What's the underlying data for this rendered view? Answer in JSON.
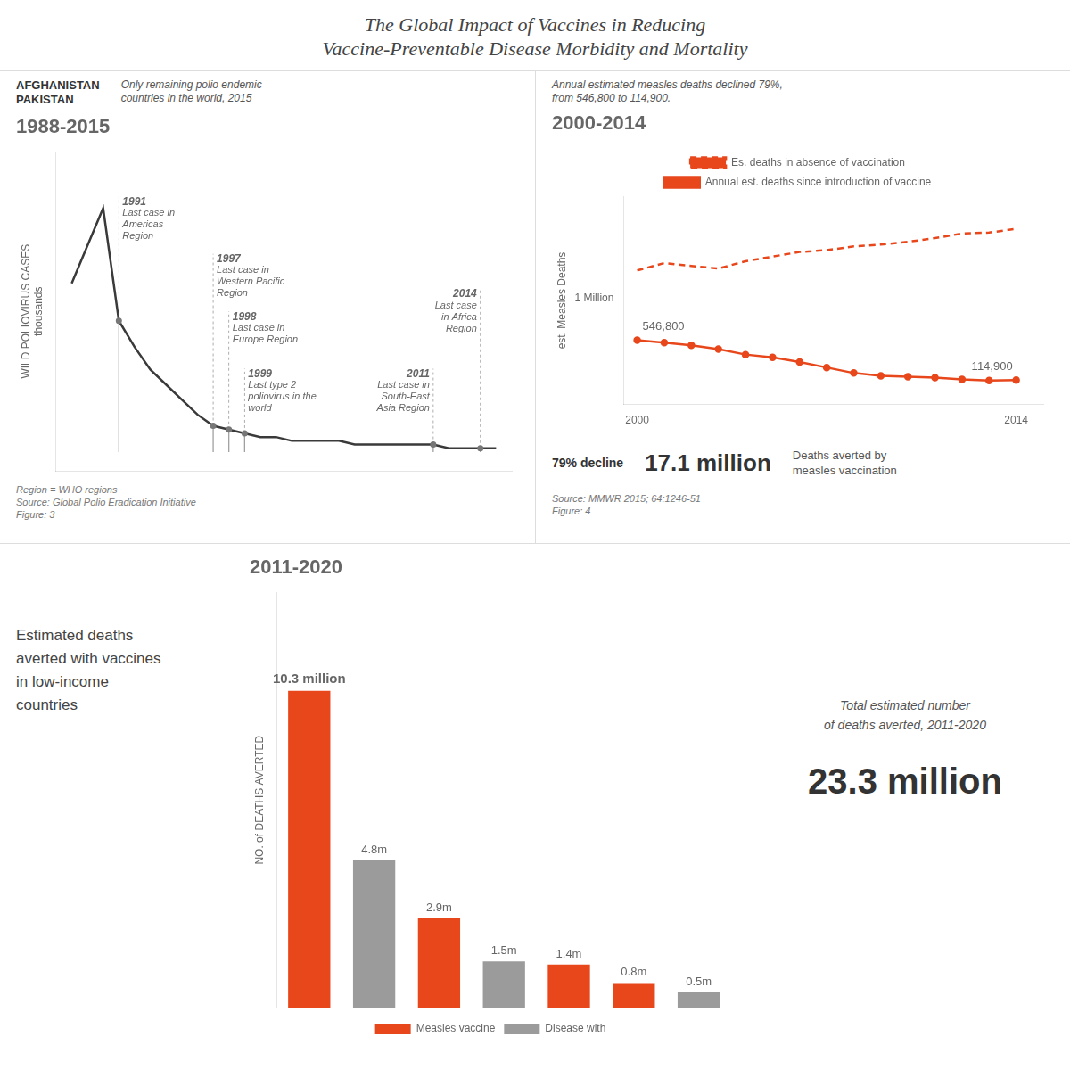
{
  "title": "The Global Impact of Vaccines in Reducing\nVaccine-Preventable Disease Morbidity and Mortality",
  "chart_data": [
    {
      "type": "line",
      "subtitle": "1988-2015",
      "x": [
        1988,
        1989,
        1990,
        1991,
        1992,
        1993,
        1994,
        1995,
        1996,
        1997,
        1998,
        1999,
        2000,
        2001,
        2002,
        2003,
        2004,
        2005,
        2006,
        2007,
        2008,
        2009,
        2010,
        2011,
        2012,
        2013,
        2014,
        2015
      ],
      "values": [
        0.45,
        0.55,
        0.65,
        0.35,
        0.28,
        0.22,
        0.18,
        0.14,
        0.1,
        0.07,
        0.06,
        0.05,
        0.04,
        0.04,
        0.03,
        0.03,
        0.03,
        0.03,
        0.02,
        0.02,
        0.02,
        0.02,
        0.02,
        0.02,
        0.01,
        0.01,
        0.01,
        0.01
      ],
      "color": "#3A3A3A",
      "ylabel": "WILD POLIOVIRUS CASES\nthousands",
      "xlim": [
        1987,
        2016
      ],
      "ylim": [
        -0.05,
        0.8
      ],
      "tick_labels": false,
      "grid": false,
      "events": [
        {
          "x": 1991,
          "y": 0.35,
          "label": "1991",
          "text": "Last case in\nAmericas\nRegion"
        },
        {
          "x": 1997,
          "y": 0.07,
          "label": "1997",
          "text": "Last case in\nWestern Pacific\nRegion"
        },
        {
          "x": 1998,
          "y": 0.06,
          "label": "1998",
          "text": "Last case in\nEurope Region"
        },
        {
          "x": 1999,
          "y": 0.05,
          "label": "1999",
          "text": "Last type 2\npoliovirus in the\nworld"
        },
        {
          "x": 2011,
          "y": 0.02,
          "label": "2011",
          "text": "Last case in\nSouth-East\nAsia Region"
        },
        {
          "x": 2014,
          "y": 0.01,
          "label": "2014",
          "text": "Last case\nin Africa\nRegion"
        }
      ],
      "annotations": [
        "AFGHANISTAN\nPAKISTAN",
        "Only remaining polio endemic\ncountries in the world, 2015",
        "Region = WHO regions\nSource: Global Polio Eradication Initiative\nFigure: 3"
      ]
    },
    {
      "type": "line",
      "subtitle": "2000-2014",
      "x": [
        2000,
        2001,
        2002,
        2003,
        2004,
        2005,
        2006,
        2007,
        2008,
        2009,
        2010,
        2011,
        2012,
        2013,
        2014
      ],
      "series": [
        {
          "name": "Es. deaths in absence of vaccination",
          "color": "#E8471C",
          "line_style": "dashed",
          "values": [
            1300000,
            1380000,
            1350000,
            1320000,
            1400000,
            1450000,
            1500000,
            1520000,
            1560000,
            1580000,
            1610000,
            1650000,
            1700000,
            1710000,
            1750000
          ]
        },
        {
          "name": "Annual est. deaths since introduction of vaccine",
          "color": "#E8471C",
          "line_style": "solid",
          "marker": "circle",
          "values": [
            546800,
            520000,
            490000,
            450000,
            390000,
            360000,
            310000,
            250000,
            190000,
            160000,
            150000,
            140000,
            120000,
            110000,
            114900
          ],
          "value_labels": [
            "546,800",
            null,
            null,
            null,
            null,
            null,
            null,
            null,
            null,
            null,
            null,
            null,
            null,
            null,
            "114,900"
          ]
        }
      ],
      "ylabel": "est. Measles Deaths",
      "xlim": [
        1999.5,
        2015
      ],
      "ylim": [
        -150000,
        2100000
      ],
      "xticks": [
        2000,
        2014
      ],
      "yticks": [
        {
          "value": 1000000,
          "label": "1 Million"
        }
      ],
      "grid": false,
      "legend": "top",
      "data_labels": true,
      "annotations": [
        "Annual estimated measles deaths declined 79%,\nfrom 546,800 to 114,900.",
        "79% decline",
        "17.1 million",
        "Deaths averted by\nmeasles vaccination",
        "Source: MMWR 2015; 64:1246-51\nFigure: 4"
      ]
    },
    {
      "type": "bar",
      "subtitle": "2011-2020",
      "categories": [
        null,
        null,
        null,
        null,
        null,
        null,
        null
      ],
      "series": [
        {
          "name": "Measles vaccine",
          "color": "#E8471C",
          "values": [
            10.3,
            null,
            2.9,
            null,
            1.4,
            0.8,
            null
          ],
          "value_labels": [
            "10.3 million",
            null,
            "2.9m",
            null,
            "1.4m",
            "0.8m",
            null
          ]
        },
        {
          "name": "Disease with",
          "color": "#9B9B9B",
          "values": [
            null,
            4.8,
            null,
            1.5,
            null,
            null,
            0.5
          ],
          "value_labels": [
            null,
            "4.8m",
            null,
            "1.5m",
            null,
            null,
            "0.5m"
          ]
        }
      ],
      "ylabel": "NO. of DEATHS AVERTED",
      "ylim": [
        0,
        13.5
      ],
      "tick_labels": false,
      "grid": false,
      "legend": "bottom",
      "data_labels": true,
      "annotations": [
        "Estimated deaths\naverted with vaccines\nin low-income\ncountries",
        "Total estimated number\nof deaths averted, 2011-2020",
        "23.3 million"
      ]
    }
  ]
}
